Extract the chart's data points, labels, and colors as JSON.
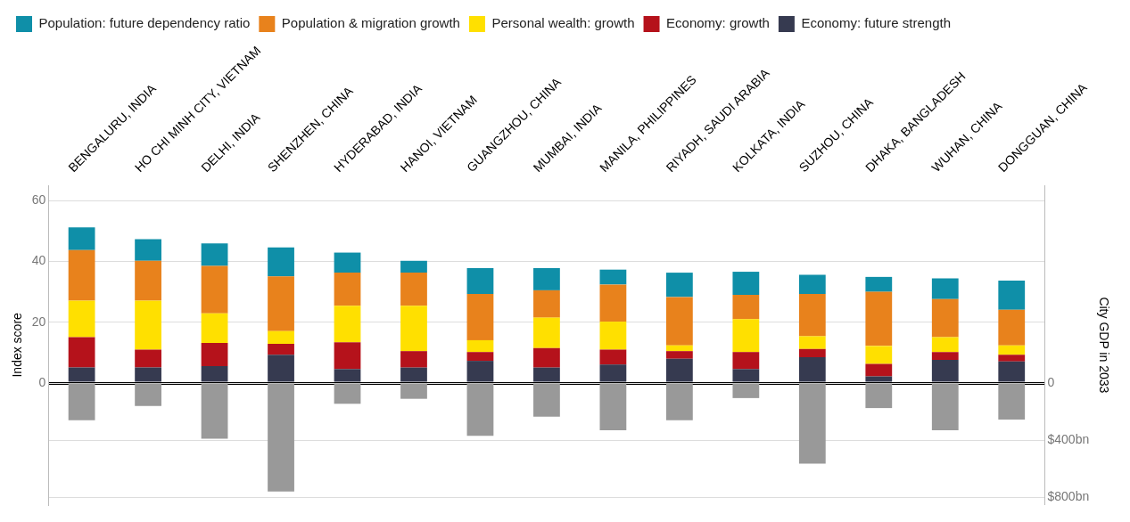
{
  "chart_data": {
    "type": "bar",
    "stacked": true,
    "legend": "top",
    "grid": "y",
    "ylabel": "Index score",
    "y2label": "City GDP in 2033",
    "categories": [
      "BENGALURU, INDIA",
      "HO CHI MINH CITY, VIETNAM",
      "DELHI, INDIA",
      "SHENZHEN, CHINA",
      "HYDERABAD, INDIA",
      "HANOI, VIETNAM",
      "GUANGZHOU, CHINA",
      "MUMBAI, INDIA",
      "MANILA, PHILIPPINES",
      "RIYADH, SAUDI ARABIA",
      "KOLKATA, INDIA",
      "SUZHOU, CHINA",
      "DHAKA, BANGLADESH",
      "WUHAN, CHINA",
      "DONGGUAN, CHINA"
    ],
    "ylim": [
      -40,
      65
    ],
    "yticks": [
      0,
      20,
      40,
      60
    ],
    "y2lim": [
      852,
      -1385
    ],
    "y2ticks": [
      0,
      {
        "value": 400,
        "label": "$400bn"
      },
      {
        "value": 800,
        "label": "$800bn"
      }
    ],
    "series": [
      {
        "name": "Economy: future strength",
        "color": "#363a50",
        "values": [
          5.1,
          5.1,
          5.6,
          9.3,
          4.6,
          5.1,
          7.3,
          5.1,
          6.1,
          8,
          4.6,
          8.5,
          2.2,
          7.6,
          7.1
        ]
      },
      {
        "name": "Economy: growth",
        "color": "#b5121b",
        "values": [
          10,
          5.9,
          7.6,
          3.6,
          8.8,
          5.4,
          2.9,
          6.4,
          4.9,
          2.5,
          5.6,
          2.7,
          4.1,
          2.6,
          2.2
        ]
      },
      {
        "name": "Personal wealth: growth",
        "color": "#ffe000",
        "values": [
          12,
          16.1,
          9.7,
          4.2,
          12,
          14.9,
          3.9,
          10,
          9.2,
          1.9,
          10.8,
          4.2,
          5.9,
          4.9,
          3.1
        ]
      },
      {
        "name": "Population & migration growth",
        "color": "#e8821c",
        "values": [
          16.6,
          13.1,
          15.6,
          18,
          10.9,
          10.9,
          15.2,
          9,
          12.2,
          15.9,
          8,
          13.9,
          17.8,
          12.5,
          11.7
        ]
      },
      {
        "name": "Population: future dependency ratio",
        "color": "#0f8fa8",
        "values": [
          7.5,
          7.1,
          7.4,
          9.5,
          6.6,
          3.9,
          8.5,
          7.3,
          4.9,
          8,
          7.6,
          6.3,
          4.9,
          6.8,
          9.6
        ]
      },
      {
        "axis": "y2",
        "color": "#999999",
        "values": [
          260,
          160,
          390,
          760,
          145,
          110,
          370,
          235,
          330,
          260,
          105,
          565,
          175,
          330,
          255
        ]
      }
    ]
  }
}
